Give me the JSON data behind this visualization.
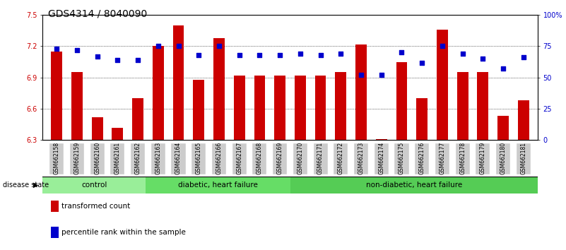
{
  "title": "GDS4314 / 8040090",
  "samples": [
    "GSM662158",
    "GSM662159",
    "GSM662160",
    "GSM662161",
    "GSM662162",
    "GSM662163",
    "GSM662164",
    "GSM662165",
    "GSM662166",
    "GSM662167",
    "GSM662168",
    "GSM662169",
    "GSM662170",
    "GSM662171",
    "GSM662172",
    "GSM662173",
    "GSM662174",
    "GSM662175",
    "GSM662176",
    "GSM662177",
    "GSM662178",
    "GSM662179",
    "GSM662180",
    "GSM662181"
  ],
  "bar_values": [
    7.15,
    6.95,
    6.52,
    6.42,
    6.7,
    7.2,
    7.4,
    6.88,
    7.28,
    6.92,
    6.92,
    6.92,
    6.92,
    6.92,
    6.95,
    7.22,
    6.31,
    7.05,
    6.7,
    7.36,
    6.95,
    6.95,
    6.53,
    6.68
  ],
  "dot_values": [
    73,
    72,
    67,
    64,
    64,
    75,
    75,
    68,
    75,
    68,
    68,
    68,
    69,
    68,
    69,
    52,
    52,
    70,
    62,
    75,
    69,
    65,
    57,
    66
  ],
  "ylim_left": [
    6.3,
    7.5
  ],
  "ylim_right": [
    0,
    100
  ],
  "yticks_left": [
    6.3,
    6.6,
    6.9,
    7.2,
    7.5
  ],
  "yticks_right": [
    0,
    25,
    50,
    75,
    100
  ],
  "bar_color": "#cc0000",
  "dot_color": "#0000cc",
  "groups": [
    {
      "label": "control",
      "start": 0,
      "end": 5,
      "color": "#99ee99"
    },
    {
      "label": "diabetic, heart failure",
      "start": 5,
      "end": 12,
      "color": "#66dd66"
    },
    {
      "label": "non-diabetic, heart failure",
      "start": 12,
      "end": 24,
      "color": "#55cc55"
    }
  ],
  "disease_state_label": "disease state",
  "legend_bar_label": "transformed count",
  "legend_dot_label": "percentile rank within the sample",
  "bar_color_legend": "#cc0000",
  "dot_color_legend": "#0000cc",
  "left_tick_color": "#cc0000",
  "right_tick_color": "#0000cc",
  "title_fontsize": 10,
  "tick_fontsize": 7,
  "bar_width": 0.55,
  "xtick_bg_color": "#cccccc"
}
